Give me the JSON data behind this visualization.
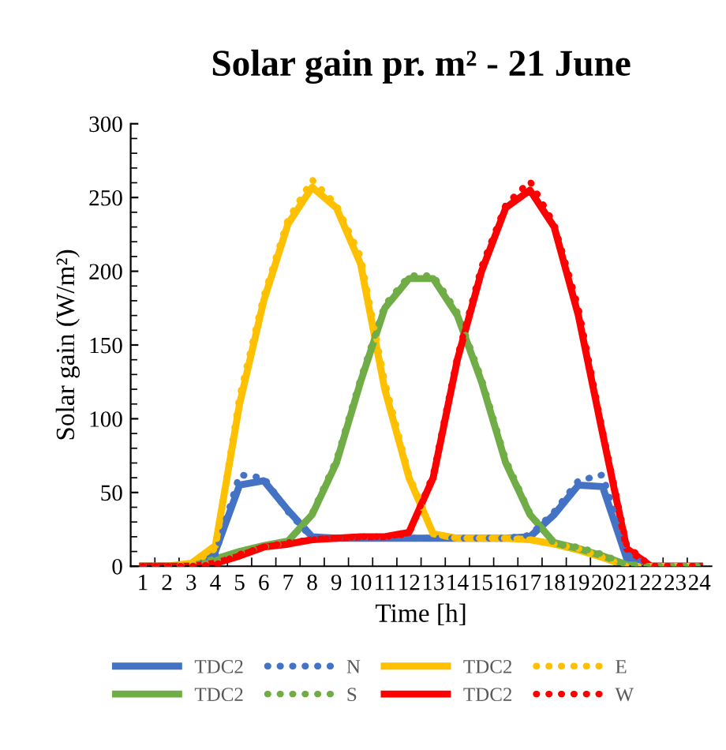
{
  "chart_data": {
    "type": "line",
    "title": "Solar gain pr. m² - 21 June",
    "xlabel": "Time [h]",
    "ylabel": "Solar gain (W/m²)",
    "categories": [
      "1",
      "2",
      "3",
      "4",
      "5",
      "6",
      "7",
      "8",
      "9",
      "10",
      "11",
      "12",
      "13",
      "14",
      "15",
      "16",
      "17",
      "18",
      "19",
      "20",
      "21",
      "22",
      "23",
      "24"
    ],
    "ylim": [
      0,
      300
    ],
    "yticks": [
      0,
      50,
      100,
      150,
      200,
      250,
      300
    ],
    "grid": false,
    "legend": "bottom",
    "marker": "none",
    "series": [
      {
        "name": "TDC2",
        "color": "#4472c4",
        "line_style": "solid",
        "values": [
          0,
          0,
          0,
          10,
          55,
          58,
          38,
          20,
          19,
          19,
          19,
          19,
          19,
          19,
          19,
          19,
          20,
          35,
          55,
          54,
          5,
          0,
          0,
          0
        ]
      },
      {
        "name": "N",
        "color": "#4472c4",
        "line_style": "dotted",
        "values": [
          0,
          0,
          0,
          8,
          62,
          60,
          37,
          19,
          19,
          19,
          19,
          19,
          19,
          19,
          19,
          19,
          21,
          37,
          58,
          62,
          8,
          0,
          0,
          0
        ]
      },
      {
        "name": "TDC2",
        "color": "#ffc000",
        "line_style": "solid",
        "values": [
          0,
          0,
          2,
          14,
          110,
          180,
          232,
          257,
          243,
          205,
          120,
          60,
          22,
          19,
          19,
          19,
          18,
          15,
          11,
          6,
          0,
          0,
          null,
          null
        ]
      },
      {
        "name": "E",
        "color": "#ffc000",
        "line_style": "dotted",
        "values": [
          0,
          0,
          1,
          12,
          115,
          183,
          235,
          262,
          245,
          210,
          125,
          62,
          22,
          19,
          19,
          19,
          18,
          15,
          12,
          6,
          0,
          0,
          0,
          0
        ]
      },
      {
        "name": "TDC2",
        "color": "#70ad47",
        "line_style": "solid",
        "values": [
          0,
          0,
          0,
          5,
          10,
          14,
          17,
          35,
          70,
          125,
          175,
          195,
          195,
          170,
          125,
          70,
          35,
          16,
          12,
          7,
          1,
          0,
          0,
          0
        ]
      },
      {
        "name": "S",
        "color": "#70ad47",
        "line_style": "dotted",
        "values": [
          0,
          0,
          0,
          4,
          9,
          13,
          16,
          36,
          72,
          127,
          177,
          197,
          197,
          172,
          127,
          72,
          36,
          15,
          13,
          8,
          1,
          0,
          0,
          0
        ]
      },
      {
        "name": "TDC2",
        "color": "#ff0000",
        "line_style": "solid",
        "values": [
          0,
          0,
          0,
          2,
          7,
          13,
          15,
          18,
          19,
          20,
          20,
          23,
          60,
          140,
          200,
          243,
          255,
          230,
          170,
          90,
          12,
          0,
          0,
          0
        ]
      },
      {
        "name": "W",
        "color": "#ff0000",
        "line_style": "dotted",
        "values": [
          0,
          0,
          0,
          1,
          8,
          13,
          16,
          18,
          19,
          20,
          20,
          22,
          62,
          142,
          203,
          245,
          261,
          232,
          175,
          92,
          14,
          0,
          0,
          0
        ]
      }
    ]
  }
}
